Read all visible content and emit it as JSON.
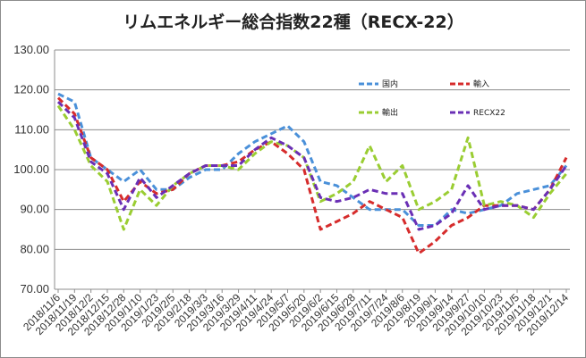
{
  "chart_data": {
    "type": "line",
    "title": "リムエネルギー総合指数22種（RECX-22）",
    "xlabel": "",
    "ylabel": "",
    "ylim": [
      70,
      130
    ],
    "yticks": [
      "70.00",
      "80.00",
      "90.00",
      "100.00",
      "110.00",
      "120.00",
      "130.00"
    ],
    "grid": "horizontal",
    "legend_position": "inside-top-right",
    "categories": [
      "2018/11/6",
      "2018/11/19",
      "2018/12/2",
      "2018/12/15",
      "2018/12/28",
      "2019/1/10",
      "2019/1/23",
      "2019/2/5",
      "2019/2/18",
      "2019/3/3",
      "2019/3/16",
      "2019/3/29",
      "2019/4/11",
      "2019/4/24",
      "2019/5/7",
      "2019/5/20",
      "2019/6/2",
      "2019/6/15",
      "2019/6/28",
      "2019/7/11",
      "2019/7/24",
      "2019/8/6",
      "2019/8/19",
      "2019/9/1",
      "2019/9/14",
      "2019/9/27",
      "2019/10/10",
      "2019/10/23",
      "2019/11/5",
      "2019/11/18",
      "2019/12/1",
      "2019/12/14"
    ],
    "series": [
      {
        "name": "国内",
        "color": "#4a90d9",
        "values": [
          119,
          117,
          103,
          100,
          97,
          100,
          95,
          95,
          98,
          100,
          100,
          104,
          107,
          109,
          111,
          107,
          97,
          96,
          93,
          90,
          90,
          90,
          86,
          86,
          90,
          89,
          90,
          91,
          94,
          95,
          96,
          101
        ]
      },
      {
        "name": "輸入",
        "color": "#d62c2c",
        "values": [
          118,
          114,
          103,
          100,
          92,
          97,
          94,
          95,
          99,
          101,
          101,
          102,
          105,
          107,
          104,
          100,
          85,
          87,
          89,
          92,
          90,
          88,
          79,
          82,
          86,
          88,
          91,
          91,
          91,
          90,
          95,
          103
        ]
      },
      {
        "name": "輸出",
        "color": "#9acd32",
        "values": [
          116,
          110,
          101,
          97,
          85,
          95,
          91,
          96,
          99,
          101,
          101,
          100,
          104,
          107,
          106,
          103,
          92,
          94,
          97,
          106,
          97,
          101,
          90,
          92,
          95,
          108,
          91,
          92,
          91,
          88,
          94,
          99
        ]
      },
      {
        "name": "RECX22",
        "color": "#6a2fb5",
        "values": [
          117,
          113,
          102,
          99,
          90,
          98,
          93,
          96,
          99,
          101,
          101,
          101,
          105,
          108,
          106,
          103,
          93,
          92,
          93,
          95,
          94,
          94,
          85,
          86,
          89,
          96,
          90,
          91,
          91,
          90,
          95,
          101
        ]
      }
    ]
  }
}
